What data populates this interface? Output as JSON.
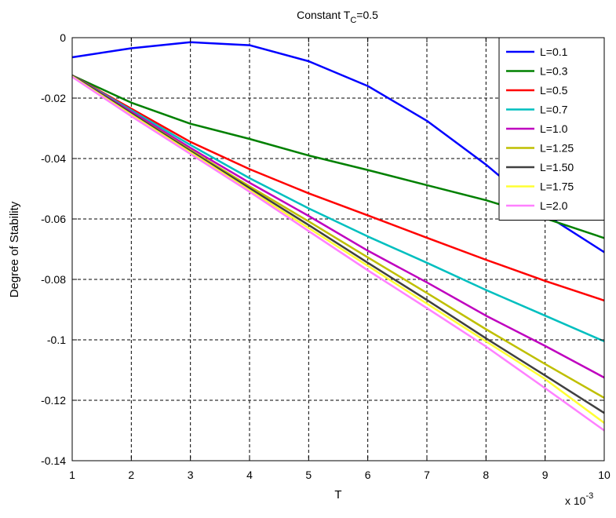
{
  "chart_data": {
    "type": "line",
    "title_main": "Constant T",
    "title_sub": "C",
    "title_tail": "=0.5",
    "xlabel": "T",
    "ylabel": "Degree of Stability",
    "x_multiplier_base": "x 10",
    "x_multiplier_exp": "-3",
    "xlim": [
      1,
      10
    ],
    "ylim": [
      -0.14,
      0
    ],
    "xticks": [
      1,
      2,
      3,
      4,
      5,
      6,
      7,
      8,
      9,
      10
    ],
    "xtick_labels": [
      "1",
      "2",
      "3",
      "4",
      "5",
      "6",
      "7",
      "8",
      "9",
      "10"
    ],
    "yticks": [
      0,
      -0.02,
      -0.04,
      -0.06,
      -0.08,
      -0.1,
      -0.12,
      -0.14
    ],
    "ytick_labels": [
      "0",
      "-0.02",
      "-0.04",
      "-0.06",
      "-0.08",
      "-0.1",
      "-0.12",
      "-0.14"
    ],
    "grid": true,
    "legend_position": "top-right",
    "x": [
      1,
      2,
      3,
      4,
      5,
      6,
      7,
      8,
      9,
      10
    ],
    "series": [
      {
        "name": "L=0.1",
        "color": "#0000ff",
        "values": [
          -0.0065,
          -0.0035,
          -0.0015,
          -0.0025,
          -0.0078,
          -0.016,
          -0.0275,
          -0.042,
          -0.0585,
          -0.071
        ]
      },
      {
        "name": "L=0.3",
        "color": "#008000",
        "values": [
          -0.0125,
          -0.0215,
          -0.0285,
          -0.0335,
          -0.039,
          -0.0438,
          -0.0488,
          -0.0538,
          -0.0598,
          -0.0663
        ]
      },
      {
        "name": "L=0.5",
        "color": "#ff0000",
        "values": [
          -0.0125,
          -0.0235,
          -0.0345,
          -0.0435,
          -0.0515,
          -0.0588,
          -0.0662,
          -0.0735,
          -0.0805,
          -0.087
        ]
      },
      {
        "name": "L=0.7",
        "color": "#00bfbf",
        "values": [
          -0.0125,
          -0.024,
          -0.0355,
          -0.0465,
          -0.0565,
          -0.0658,
          -0.0745,
          -0.0835,
          -0.092,
          -0.1005
        ]
      },
      {
        "name": "L=1.0",
        "color": "#bf00bf",
        "values": [
          -0.0125,
          -0.0245,
          -0.0365,
          -0.048,
          -0.059,
          -0.0705,
          -0.081,
          -0.092,
          -0.102,
          -0.1125
        ]
      },
      {
        "name": "L=1.25",
        "color": "#bfbf00",
        "values": [
          -0.0125,
          -0.025,
          -0.0372,
          -0.0492,
          -0.0608,
          -0.0727,
          -0.0845,
          -0.0965,
          -0.108,
          -0.1192
        ]
      },
      {
        "name": "L=1.50",
        "color": "#404040",
        "values": [
          -0.0125,
          -0.025,
          -0.0375,
          -0.0498,
          -0.062,
          -0.0745,
          -0.0868,
          -0.0995,
          -0.1118,
          -0.1242
        ]
      },
      {
        "name": "L=1.75",
        "color": "#ffff33",
        "values": [
          -0.0128,
          -0.0255,
          -0.038,
          -0.0505,
          -0.063,
          -0.0755,
          -0.088,
          -0.1005,
          -0.113,
          -0.1275
        ]
      },
      {
        "name": "L=2.0",
        "color": "#ff80ff",
        "values": [
          -0.013,
          -0.026,
          -0.0385,
          -0.051,
          -0.064,
          -0.077,
          -0.0895,
          -0.1022,
          -0.116,
          -0.13
        ]
      }
    ]
  }
}
